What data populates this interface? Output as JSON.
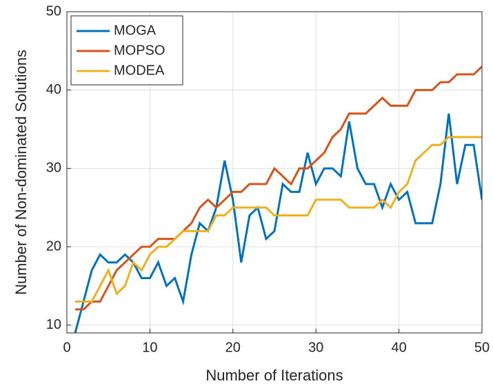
{
  "chart_data": {
    "type": "line",
    "xlabel": "Number of Iterations",
    "ylabel": "Number of Non-dominated Solutions",
    "x": [
      1,
      2,
      3,
      4,
      5,
      6,
      7,
      8,
      9,
      10,
      11,
      12,
      13,
      14,
      15,
      16,
      17,
      18,
      19,
      20,
      21,
      22,
      23,
      24,
      25,
      26,
      27,
      28,
      29,
      30,
      31,
      32,
      33,
      34,
      35,
      36,
      37,
      38,
      39,
      40,
      41,
      42,
      43,
      44,
      45,
      46,
      47,
      48,
      49,
      50
    ],
    "series": [
      {
        "name": "MOGA",
        "color": "#0072BD",
        "values": [
          9,
          13,
          17,
          19,
          18,
          18,
          19,
          18,
          16,
          16,
          18,
          15,
          16,
          13,
          19,
          23,
          22,
          25,
          31,
          26,
          18,
          24,
          25,
          21,
          22,
          28,
          27,
          27,
          32,
          28,
          30,
          30,
          29,
          36,
          30,
          28,
          28,
          25,
          28,
          26,
          27,
          23,
          23,
          23,
          28,
          37,
          28,
          33,
          33,
          26
        ]
      },
      {
        "name": "MOPSO",
        "color": "#D95319",
        "values": [
          12,
          12,
          13,
          13,
          15,
          17,
          18,
          19,
          20,
          20,
          21,
          21,
          21,
          22,
          23,
          25,
          26,
          25,
          26,
          27,
          27,
          28,
          28,
          28,
          30,
          29,
          28,
          30,
          30,
          31,
          32,
          34,
          35,
          37,
          37,
          37,
          38,
          39,
          38,
          38,
          38,
          40,
          40,
          40,
          41,
          41,
          42,
          42,
          42,
          43
        ]
      },
      {
        "name": "MODEA",
        "color": "#EDB120",
        "values": [
          13,
          13,
          13,
          15,
          17,
          14,
          15,
          18,
          17,
          19,
          20,
          20,
          21,
          22,
          22,
          22,
          22,
          24,
          24,
          25,
          25,
          25,
          25,
          25,
          24,
          24,
          24,
          24,
          24,
          26,
          26,
          26,
          26,
          25,
          25,
          25,
          25,
          26,
          25,
          27,
          28,
          31,
          32,
          33,
          33,
          34,
          34,
          34,
          34,
          34
        ]
      }
    ],
    "xlim": [
      0,
      50
    ],
    "xticks": [
      0,
      10,
      20,
      30,
      40,
      50
    ],
    "ylim": [
      9,
      50
    ],
    "yticks": [
      10,
      20,
      30,
      40,
      50
    ],
    "grid": true,
    "legend": "top-left"
  }
}
